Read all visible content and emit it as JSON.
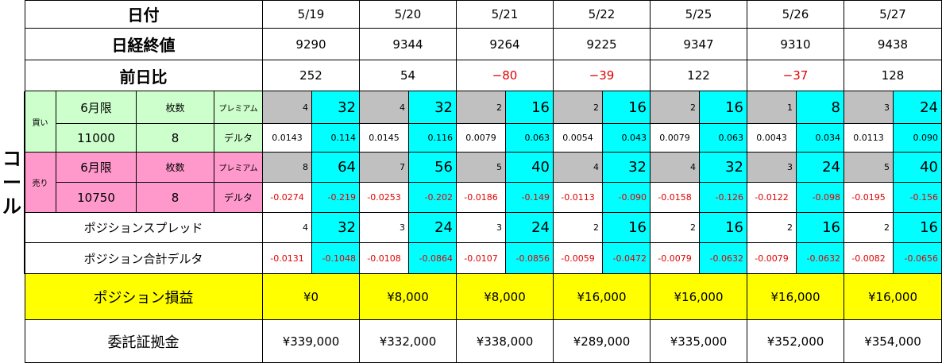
{
  "side_label": [
    "コ",
    "ー",
    "ル"
  ],
  "labels": {
    "date": "日付",
    "close": "日経終値",
    "change": "前日比",
    "buy": "買い",
    "sell": "売り",
    "month": "6月限",
    "qty_header": "枚数",
    "premium": "プレミアム",
    "delta": "デルタ",
    "spread": "ポジションスプレッド",
    "total_delta": "ポジション合計デルタ",
    "pnl": "ポジション損益",
    "margin": "委託証拠金"
  },
  "buy_leg": {
    "strike": "11000",
    "qty": "8"
  },
  "sell_leg": {
    "strike": "10750",
    "qty": "8"
  },
  "columns": [
    {
      "date": "5/19",
      "close": "9290",
      "change": "252",
      "change_neg": false,
      "buy_prem": [
        "4",
        "32"
      ],
      "buy_delta": [
        "0.0143",
        "0.114"
      ],
      "sell_prem": [
        "8",
        "64"
      ],
      "sell_delta": [
        "-0.0274",
        "-0.219"
      ],
      "spread": [
        "4",
        "32"
      ],
      "total_delta": [
        "-0.0131",
        "-0.1048"
      ],
      "pnl": "¥0",
      "margin": "¥339,000"
    },
    {
      "date": "5/20",
      "close": "9344",
      "change": "54",
      "change_neg": false,
      "buy_prem": [
        "4",
        "32"
      ],
      "buy_delta": [
        "0.0145",
        "0.116"
      ],
      "sell_prem": [
        "7",
        "56"
      ],
      "sell_delta": [
        "-0.0253",
        "-0.202"
      ],
      "spread": [
        "3",
        "24"
      ],
      "total_delta": [
        "-0.0108",
        "-0.0864"
      ],
      "pnl": "¥8,000",
      "margin": "¥332,000"
    },
    {
      "date": "5/21",
      "close": "9264",
      "change": "−80",
      "change_neg": true,
      "buy_prem": [
        "2",
        "16"
      ],
      "buy_delta": [
        "0.0079",
        "0.063"
      ],
      "sell_prem": [
        "5",
        "40"
      ],
      "sell_delta": [
        "-0.0186",
        "-0.149"
      ],
      "spread": [
        "3",
        "24"
      ],
      "total_delta": [
        "-0.0107",
        "-0.0856"
      ],
      "pnl": "¥8,000",
      "margin": "¥338,000"
    },
    {
      "date": "5/22",
      "close": "9225",
      "change": "−39",
      "change_neg": true,
      "buy_prem": [
        "2",
        "16"
      ],
      "buy_delta": [
        "0.0054",
        "0.043"
      ],
      "sell_prem": [
        "4",
        "32"
      ],
      "sell_delta": [
        "-0.0113",
        "-0.090"
      ],
      "spread": [
        "2",
        "16"
      ],
      "total_delta": [
        "-0.0059",
        "-0.0472"
      ],
      "pnl": "¥16,000",
      "margin": "¥289,000"
    },
    {
      "date": "5/25",
      "close": "9347",
      "change": "122",
      "change_neg": false,
      "buy_prem": [
        "2",
        "16"
      ],
      "buy_delta": [
        "0.0079",
        "0.063"
      ],
      "sell_prem": [
        "4",
        "32"
      ],
      "sell_delta": [
        "-0.0158",
        "-0.126"
      ],
      "spread": [
        "2",
        "16"
      ],
      "total_delta": [
        "-0.0079",
        "-0.0632"
      ],
      "pnl": "¥16,000",
      "margin": "¥335,000"
    },
    {
      "date": "5/26",
      "close": "9310",
      "change": "−37",
      "change_neg": true,
      "buy_prem": [
        "1",
        "8"
      ],
      "buy_delta": [
        "0.0043",
        "0.034"
      ],
      "sell_prem": [
        "3",
        "24"
      ],
      "sell_delta": [
        "-0.0122",
        "-0.098"
      ],
      "spread": [
        "2",
        "16"
      ],
      "total_delta": [
        "-0.0079",
        "-0.0632"
      ],
      "pnl": "¥16,000",
      "margin": "¥352,000"
    },
    {
      "date": "5/27",
      "close": "9438",
      "change": "128",
      "change_neg": false,
      "buy_prem": [
        "3",
        "24"
      ],
      "buy_delta": [
        "0.0113",
        "0.090"
      ],
      "sell_prem": [
        "5",
        "40"
      ],
      "sell_delta": [
        "-0.0195",
        "-0.156"
      ],
      "spread": [
        "2",
        "16"
      ],
      "total_delta": [
        "-0.0082",
        "-0.0656"
      ],
      "pnl": "¥16,000",
      "margin": "¥354,000"
    }
  ]
}
